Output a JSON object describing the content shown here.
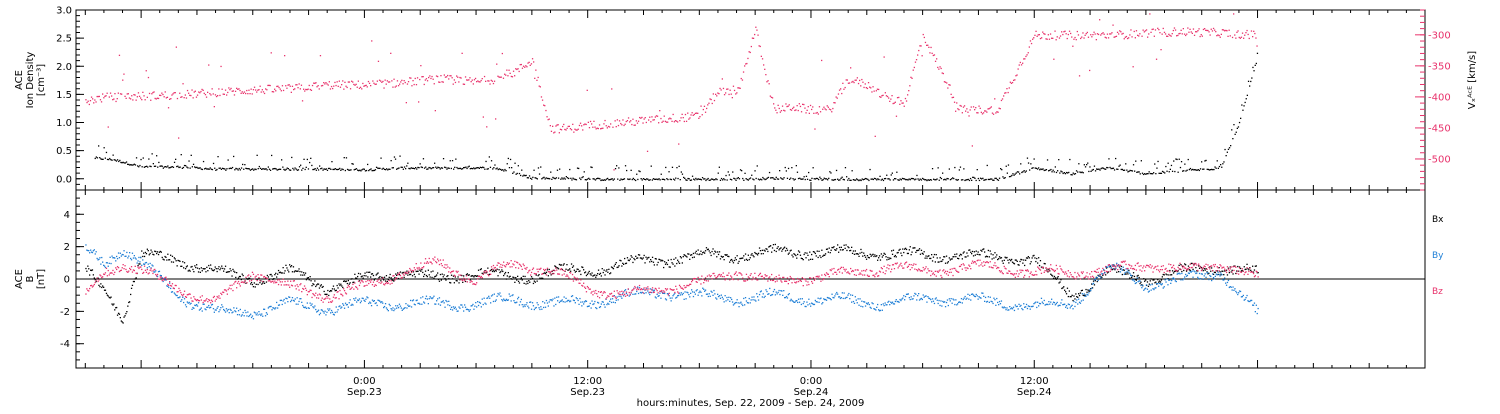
{
  "chart_data": [
    {
      "type": "scatter",
      "panel": "top",
      "left_axis": {
        "label_lines": [
          "ACE",
          "Ion Density",
          "[cm⁻³]"
        ],
        "ylim": [
          -0.2,
          3.0
        ],
        "ticks": [
          0.0,
          0.5,
          1.0,
          1.5,
          2.0,
          2.5,
          3.0
        ],
        "tick_labels": [
          "0.0",
          "0.5",
          "1.0",
          "1.5",
          "2.0",
          "2.5",
          "3.0"
        ]
      },
      "right_axis": {
        "label": "Vₓᴬᶜᴱ [km/s]",
        "color": "#e8336c",
        "ylim": [
          -550,
          -260
        ],
        "ticks": [
          -300,
          -350,
          -400,
          -450,
          -500
        ],
        "tick_labels": [
          "-300",
          "-350",
          "-400",
          "-450",
          "-500"
        ]
      },
      "x_hours_range": [
        -15.5,
        57.0
      ],
      "series": [
        {
          "color": "#000000",
          "axis": "left",
          "hours": [
            -14.5,
            -13.5,
            -12,
            -10,
            -8,
            -6,
            -4,
            -2,
            0,
            2,
            4,
            6,
            7,
            8,
            9,
            10,
            12,
            14,
            16,
            18,
            20,
            22,
            24,
            26,
            28,
            30,
            32,
            34,
            36,
            38,
            40,
            42,
            44,
            46,
            47,
            48
          ],
          "values": [
            0.38,
            0.35,
            0.22,
            0.22,
            0.18,
            0.18,
            0.18,
            0.18,
            0.17,
            0.2,
            0.2,
            0.2,
            0.2,
            0.12,
            0.02,
            0.02,
            0.0,
            0.0,
            0.0,
            0.0,
            0.0,
            0.02,
            0.0,
            0.0,
            0.0,
            0.0,
            0.0,
            0.0,
            0.2,
            0.1,
            0.2,
            0.1,
            0.15,
            0.2,
            1.0,
            2.2
          ]
        },
        {
          "color": "#e8336c",
          "axis": "right",
          "hours": [
            -15,
            -14,
            -12,
            -10,
            -8,
            -6,
            -4,
            -2,
            0,
            2,
            4,
            6,
            7,
            8,
            9,
            10,
            11,
            12,
            14,
            16,
            18,
            19,
            20,
            21,
            22,
            23,
            24,
            25,
            26,
            27,
            28,
            29,
            30,
            32,
            34,
            36,
            38,
            40,
            42,
            44,
            46,
            48
          ],
          "values": [
            -405,
            -400,
            -398,
            -396,
            -392,
            -388,
            -386,
            -380,
            -380,
            -376,
            -370,
            -375,
            -370,
            -360,
            -340,
            -450,
            -450,
            -445,
            -440,
            -435,
            -430,
            -390,
            -395,
            -290,
            -420,
            -415,
            -420,
            -420,
            -370,
            -380,
            -400,
            -410,
            -300,
            -420,
            -420,
            -300,
            -300,
            -300,
            -296,
            -294,
            -296,
            -300
          ]
        }
      ]
    },
    {
      "type": "scatter",
      "panel": "bottom",
      "left_axis": {
        "label_lines": [
          "ACE",
          "B",
          "[nT]"
        ],
        "ylim": [
          -5.5,
          5.5
        ],
        "ticks": [
          4,
          2,
          0,
          -2,
          -4
        ],
        "tick_labels": [
          "4",
          "2",
          "0",
          "-2",
          "-4"
        ]
      },
      "x_hours_range": [
        -15.5,
        57.0
      ],
      "series": [
        {
          "name": "Bx",
          "color": "#000000",
          "hours": [
            -15,
            -14,
            -13,
            -12,
            -10,
            -8,
            -6,
            -4,
            -2,
            0,
            2,
            4,
            6,
            8,
            10,
            12,
            14,
            16,
            18,
            20,
            22,
            24,
            26,
            28,
            30,
            32,
            34,
            36,
            38,
            40,
            42,
            44,
            46,
            48
          ],
          "values": [
            0.5,
            -0.5,
            -2.3,
            1.5,
            1.2,
            0.5,
            0.0,
            0.5,
            -0.5,
            0.0,
            0.5,
            0.0,
            0.5,
            0.0,
            0.5,
            0.5,
            1.0,
            1.2,
            1.5,
            1.5,
            1.7,
            1.7,
            1.7,
            1.6,
            1.5,
            1.5,
            1.4,
            1.2,
            -1.0,
            0.5,
            0.0,
            0.5,
            0.8,
            0.4
          ]
        },
        {
          "name": "By",
          "color": "#1f7fd6",
          "hours": [
            -15,
            -14,
            -13,
            -12,
            -10,
            -8,
            -6,
            -4,
            -2,
            0,
            2,
            4,
            6,
            8,
            10,
            12,
            14,
            16,
            18,
            20,
            22,
            24,
            26,
            28,
            30,
            32,
            34,
            36,
            38,
            40,
            42,
            44,
            46,
            48
          ],
          "values": [
            1.8,
            1.0,
            2.0,
            1.0,
            -1.0,
            -2.0,
            -2.0,
            -1.5,
            -1.8,
            -1.5,
            -1.5,
            -1.5,
            -1.5,
            -1.2,
            -1.5,
            -1.4,
            -1.0,
            -0.8,
            -1.0,
            -1.2,
            -1.0,
            -1.2,
            -1.3,
            -1.5,
            -1.2,
            -1.2,
            -1.4,
            -1.6,
            -1.5,
            0.8,
            -0.3,
            0.0,
            0.5,
            -2.2
          ]
        },
        {
          "name": "Bz",
          "color": "#e8336c",
          "hours": [
            -15,
            -14,
            -13,
            -12,
            -10,
            -8,
            -6,
            -4,
            -2,
            0,
            2,
            4,
            6,
            8,
            10,
            12,
            14,
            16,
            18,
            20,
            22,
            24,
            26,
            28,
            30,
            32,
            34,
            36,
            38,
            40,
            42,
            44,
            46,
            48
          ],
          "values": [
            -1.0,
            0.5,
            1.0,
            0.5,
            -0.5,
            -1.5,
            0.5,
            -0.5,
            -1.0,
            -0.5,
            0.5,
            1.0,
            0.0,
            1.0,
            0.5,
            -0.5,
            -1.0,
            -0.5,
            -0.3,
            0.5,
            -0.2,
            0.2,
            0.3,
            0.8,
            0.5,
            0.7,
            0.8,
            0.4,
            0.5,
            0.5,
            1.0,
            0.5,
            1.0,
            0.0
          ]
        }
      ],
      "legend": [
        {
          "label": "Bx",
          "color": "#000000"
        },
        {
          "label": "By",
          "color": "#1f7fd6"
        },
        {
          "label": "Bz",
          "color": "#e8336c"
        }
      ]
    }
  ],
  "x_axis": {
    "ticks": [
      {
        "hours": 0,
        "time": "0:00",
        "date": "Sep.23"
      },
      {
        "hours": 12,
        "time": "12:00",
        "date": "Sep.23"
      },
      {
        "hours": 24,
        "time": "0:00",
        "date": "Sep.24"
      },
      {
        "hours": 36,
        "time": "12:00",
        "date": "Sep.24"
      }
    ],
    "caption": "hours:minutes, Sep. 22, 2009 - Sep. 24, 2009"
  }
}
